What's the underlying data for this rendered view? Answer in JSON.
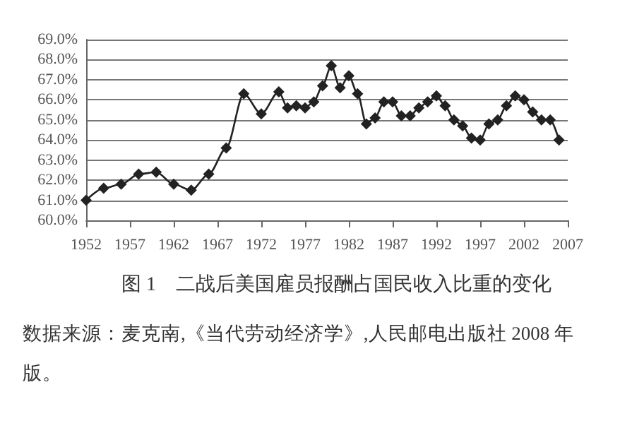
{
  "chart_data": {
    "type": "line",
    "title": "图 1　二战后美国雇员报酬占国民收入比重的变化",
    "annotations": [
      "数据来源：麦克南,《当代劳动经济学》,人民邮电出版社 2008 年版。"
    ],
    "x": [
      1952,
      1954,
      1956,
      1958,
      1960,
      1962,
      1964,
      1966,
      1968,
      1970,
      1972,
      1974,
      1975,
      1976,
      1977,
      1978,
      1979,
      1980,
      1981,
      1982,
      1983,
      1984,
      1985,
      1986,
      1987,
      1988,
      1989,
      1990,
      1991,
      1992,
      1993,
      1994,
      1995,
      1996,
      1997,
      1998,
      1999,
      2000,
      2001,
      2002,
      2003,
      2004,
      2005,
      2006
    ],
    "series": [
      {
        "color": "#222222",
        "values": [
          61.0,
          61.6,
          61.8,
          62.3,
          62.4,
          61.8,
          61.5,
          62.3,
          63.6,
          66.3,
          65.3,
          66.4,
          65.6,
          65.7,
          65.6,
          65.9,
          66.7,
          67.7,
          66.6,
          67.2,
          66.3,
          64.8,
          65.1,
          65.9,
          65.9,
          65.2,
          65.2,
          65.6,
          65.9,
          66.2,
          65.7,
          65.0,
          64.7,
          64.1,
          64.0,
          64.8,
          65.0,
          65.7,
          66.2,
          66.0,
          65.4,
          65.0,
          65.0,
          64.0
        ]
      }
    ],
    "xlim": [
      1952,
      2007
    ],
    "xticks": [
      1952,
      1957,
      1962,
      1967,
      1972,
      1977,
      1982,
      1987,
      1992,
      1997,
      2002,
      2007
    ],
    "ylim": [
      60,
      69
    ],
    "yticks": [
      {
        "value": 60,
        "label": "60.0%"
      },
      {
        "value": 61,
        "label": "61.0%"
      },
      {
        "value": 62,
        "label": "62.0%"
      },
      {
        "value": 63,
        "label": "63.0%"
      },
      {
        "value": 64,
        "label": "64.0%"
      },
      {
        "value": 65,
        "label": "65.0%"
      },
      {
        "value": 66,
        "label": "66.0%"
      },
      {
        "value": 67,
        "label": "67.0%"
      },
      {
        "value": 68,
        "label": "68.0%"
      },
      {
        "value": 69,
        "label": "69.0%"
      }
    ],
    "grid": "y",
    "marker": "diamond",
    "line_style": "solid"
  }
}
